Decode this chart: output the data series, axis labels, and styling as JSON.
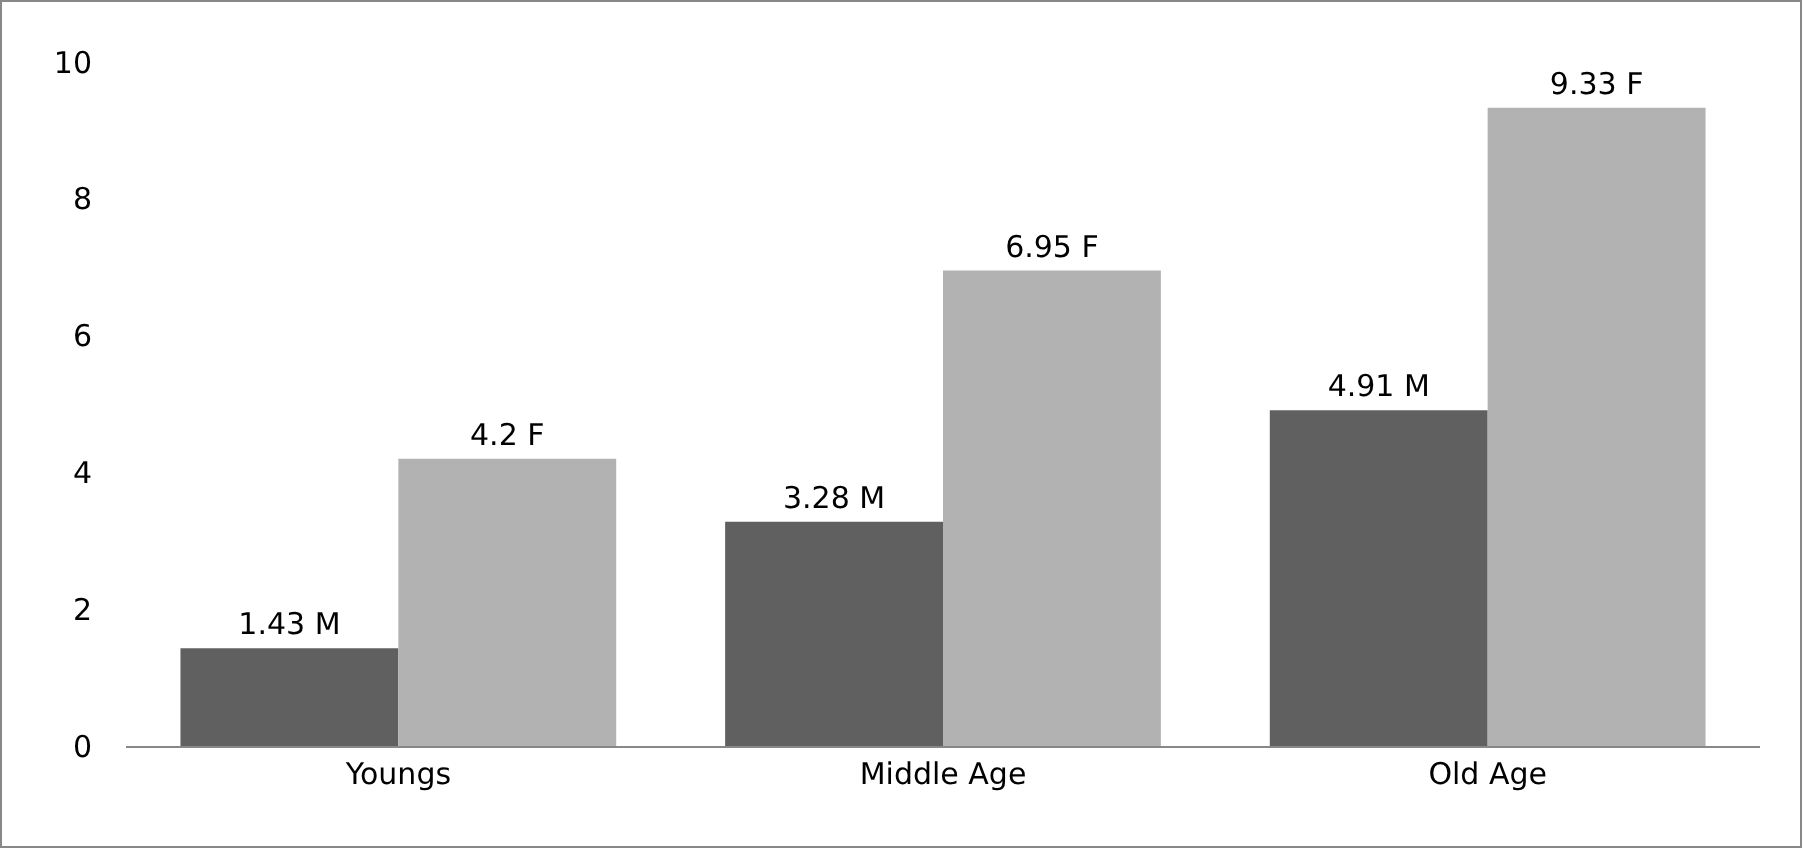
{
  "chart_data": {
    "type": "bar",
    "categories": [
      "Youngs",
      "Middle Age",
      "Old Age"
    ],
    "series": [
      {
        "color": "#606060",
        "values": [
          1.43,
          3.28,
          4.91
        ],
        "value_labels": [
          "1.43 M",
          "3.28 M",
          "4.91 M"
        ]
      },
      {
        "color": "#b2b2b2",
        "values": [
          4.2,
          6.95,
          9.33
        ],
        "value_labels": [
          "4.2 F",
          "6.95 F",
          "9.33 F"
        ]
      }
    ],
    "ylim": [
      0,
      10
    ],
    "yticks": [
      0,
      2,
      4,
      6,
      8,
      10
    ],
    "grid": false,
    "legend": false
  }
}
